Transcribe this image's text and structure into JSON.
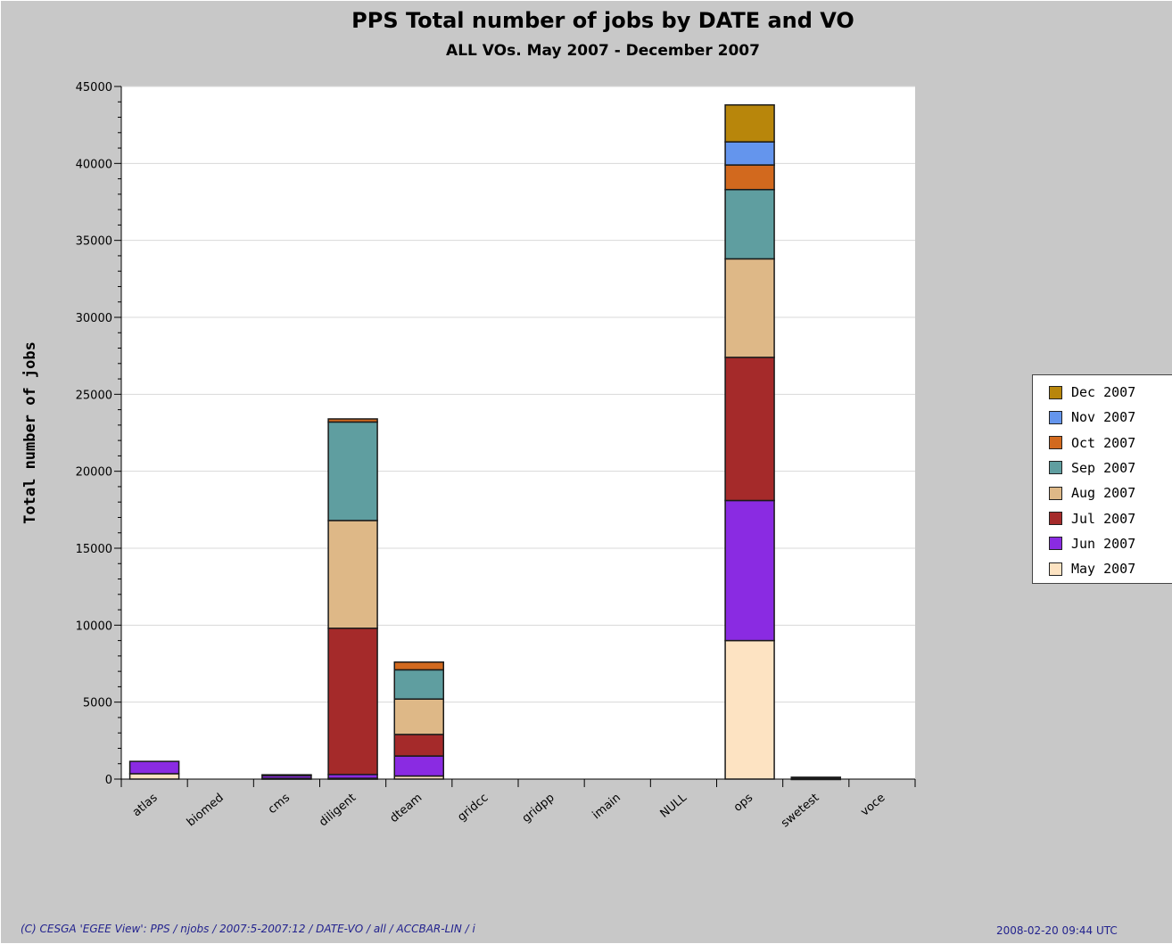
{
  "chart_data": {
    "type": "bar",
    "stacked": true,
    "title": "PPS Total number of jobs by DATE and VO",
    "subtitle": "ALL VOs. May 2007 - December 2007",
    "ylabel": "Total number of jobs",
    "xlabel": "",
    "ylim": [
      0,
      45000
    ],
    "yticks": [
      0,
      5000,
      10000,
      15000,
      20000,
      25000,
      30000,
      35000,
      40000,
      45000
    ],
    "ytick_labels": [
      "0",
      "5000",
      "10000",
      "15000",
      "20000",
      "25000",
      "30000",
      "35000",
      "40000",
      "45000"
    ],
    "grid": true,
    "legend_position": "right",
    "categories": [
      "atlas",
      "biomed",
      "cms",
      "diligent",
      "dteam",
      "gridcc",
      "gridpp",
      "imain",
      "NULL",
      "ops",
      "swetest",
      "voce"
    ],
    "series": [
      {
        "name": "May 2007",
        "color": "#fde3c2",
        "values": [
          350,
          0,
          50,
          50,
          200,
          0,
          0,
          0,
          0,
          9000,
          30,
          0
        ]
      },
      {
        "name": "Jun 2007",
        "color": "#8a2be2",
        "values": [
          800,
          0,
          200,
          250,
          1300,
          0,
          0,
          0,
          0,
          9100,
          30,
          0
        ]
      },
      {
        "name": "Jul 2007",
        "color": "#a52a2a",
        "values": [
          0,
          0,
          30,
          9500,
          1400,
          0,
          0,
          0,
          0,
          9300,
          20,
          0
        ]
      },
      {
        "name": "Aug 2007",
        "color": "#deb887",
        "values": [
          0,
          0,
          0,
          7000,
          2300,
          0,
          0,
          0,
          0,
          6400,
          20,
          0
        ]
      },
      {
        "name": "Sep 2007",
        "color": "#5f9ea0",
        "values": [
          0,
          0,
          0,
          6400,
          1900,
          0,
          0,
          0,
          0,
          4500,
          20,
          0
        ]
      },
      {
        "name": "Oct 2007",
        "color": "#d2691e",
        "values": [
          0,
          0,
          0,
          200,
          500,
          0,
          0,
          0,
          0,
          1600,
          0,
          0
        ]
      },
      {
        "name": "Nov 2007",
        "color": "#6495ed",
        "values": [
          0,
          0,
          0,
          0,
          0,
          0,
          0,
          0,
          0,
          1500,
          0,
          0
        ]
      },
      {
        "name": "Dec 2007",
        "color": "#b8860b",
        "values": [
          0,
          0,
          0,
          0,
          0,
          0,
          0,
          0,
          0,
          2400,
          0,
          0
        ]
      }
    ],
    "extra_segment_note": "",
    "legend": [
      "Dec 2007",
      "Nov 2007",
      "Oct 2007",
      "Sep 2007",
      "Aug 2007",
      "Jul 2007",
      "Jun 2007",
      "May 2007"
    ]
  },
  "footer": {
    "left": "(C) CESGA 'EGEE View': PPS / njobs / 2007:5-2007:12 / DATE-VO / all / ACCBAR-LIN / i",
    "right": "2008-02-20 09:44 UTC"
  }
}
